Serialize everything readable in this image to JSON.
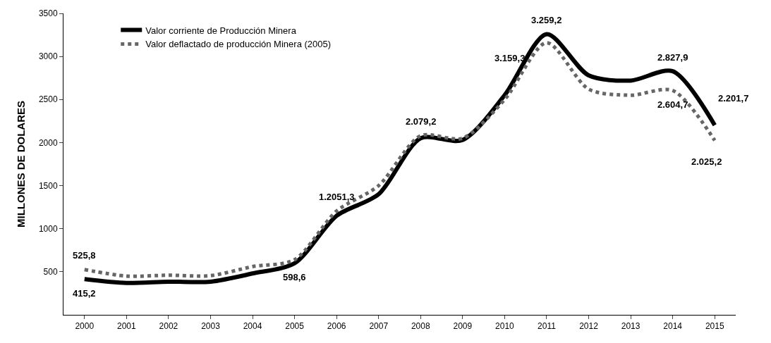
{
  "chart_data": {
    "type": "line",
    "ylabel": "MILLONES DE DOLARES",
    "categories": [
      "2000",
      "2001",
      "2002",
      "2003",
      "2004",
      "2005",
      "2006",
      "2007",
      "2008",
      "2009",
      "2010",
      "2011",
      "2012",
      "2013",
      "2014",
      "2015"
    ],
    "series": [
      {
        "name": "Valor corriente de Producción Minera",
        "color": "#000000",
        "line_style": "solid",
        "values": [
          415.2,
          370,
          385,
          385,
          480,
          598.6,
          1150,
          1400,
          2050,
          2030,
          2550,
          3259.2,
          2780,
          2720,
          2827.9,
          2201.7
        ]
      },
      {
        "name": "Valor deflactado de producción Minera (2005)",
        "color": "#666666",
        "line_style": "dotted",
        "values": [
          525.8,
          450,
          460,
          455,
          560,
          640,
          1205.3,
          1500,
          2079.2,
          2050,
          2500,
          3159.3,
          2620,
          2550,
          2604.7,
          2025.2
        ]
      }
    ],
    "ylim": [
      0,
      3500
    ],
    "yticks": [
      500,
      1000,
      1500,
      2000,
      2500,
      3000,
      3500
    ],
    "annotations": [
      {
        "text": "525,8",
        "x": "2000",
        "y": 525.8
      },
      {
        "text": "415,2",
        "x": "2000",
        "y": 415.2
      },
      {
        "text": "598,6",
        "x": "2005",
        "y": 598.6
      },
      {
        "text": "1.2051,3",
        "x": "2006",
        "y": 1205.3
      },
      {
        "text": "2.079,2",
        "x": "2008",
        "y": 2079.2
      },
      {
        "text": "3.259,2",
        "x": "2011",
        "y": 3259.2
      },
      {
        "text": "3.159,3",
        "x": "2011",
        "y": 3159.3
      },
      {
        "text": "2.827,9",
        "x": "2014",
        "y": 2827.9
      },
      {
        "text": "2.604,7",
        "x": "2014",
        "y": 2604.7
      },
      {
        "text": "2.201,7",
        "x": "2015",
        "y": 2201.7
      },
      {
        "text": "2.025,2",
        "x": "2015",
        "y": 2025.2
      }
    ],
    "legend": "top left",
    "marker": "none"
  }
}
